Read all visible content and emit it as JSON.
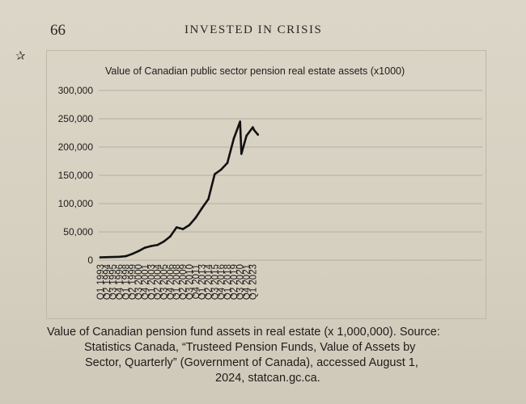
{
  "page": {
    "page_number": "66",
    "running_head": "INVESTED IN CRISIS",
    "margin_mark": "✰"
  },
  "caption": {
    "lines": [
      "Value of Canadian pension fund assets in real estate (x 1,000,000). Source:",
      "Statistics Canada, “Trusteed Pension Funds, Value of Assets by",
      "Sector, Quarterly” (Government of Canada), accessed August 1,",
      "2024, statcan.gc.ca."
    ]
  },
  "chart_data": {
    "type": "line",
    "title": "Value of Canadian public sector pension real estate assets (x1000)",
    "xlabel": "",
    "ylabel": "",
    "ylim": [
      0,
      300000
    ],
    "yticks": [
      "0",
      "50,000",
      "100,000",
      "150,000",
      "200,000",
      "250,000",
      "300,000"
    ],
    "grid": "horizontal",
    "legend": "none",
    "line_color": "#111111",
    "x_tick_labels": [
      "Q1 1993",
      "Q2 1994",
      "Q3 1995",
      "Q4 1996",
      "Q1 1998",
      "Q2 1999",
      "Q3 2000",
      "Q4 2001",
      "Q1 2003",
      "Q2 2004",
      "Q3 2005",
      "Q4 2006",
      "Q1 2008",
      "Q2 2009",
      "Q3 2010",
      "Q4 2011",
      "Q1 2013",
      "Q2 2014",
      "Q3 2015",
      "Q4 2016",
      "Q1 2018",
      "Q2 2019",
      "Q3 2020",
      "Q4 2021",
      "Q1 2023"
    ],
    "series": [
      {
        "points": [
          [
            "Q1 1993",
            5000
          ],
          [
            "Q4 1996",
            6000
          ],
          [
            "Q1 1998",
            7000
          ],
          [
            "Q2 1999",
            11000
          ],
          [
            "Q3 2000",
            16000
          ],
          [
            "Q4 2001",
            22000
          ],
          [
            "Q1 2003",
            25000
          ],
          [
            "Q2 2004",
            27000
          ],
          [
            "Q3 2005",
            33000
          ],
          [
            "Q4 2006",
            42000
          ],
          [
            "Q1 2008",
            58000
          ],
          [
            "Q2 2009",
            55000
          ],
          [
            "Q3 2010",
            62000
          ],
          [
            "Q4 2011",
            75000
          ],
          [
            "Q1 2013",
            92000
          ],
          [
            "Q2 2014",
            108000
          ],
          [
            "Q3 2015",
            152000
          ],
          [
            "Q4 2016",
            160000
          ],
          [
            "Q1 2018",
            172000
          ],
          [
            "Q2 2019",
            215000
          ],
          [
            "Q3 2020",
            245000
          ],
          [
            "Q4 2020",
            188000
          ],
          [
            "Q4 2021",
            220000
          ],
          [
            "Q1 2023",
            235000
          ],
          [
            "Q2 2023",
            230000
          ],
          [
            "Q1 2024",
            222000
          ]
        ]
      }
    ]
  }
}
